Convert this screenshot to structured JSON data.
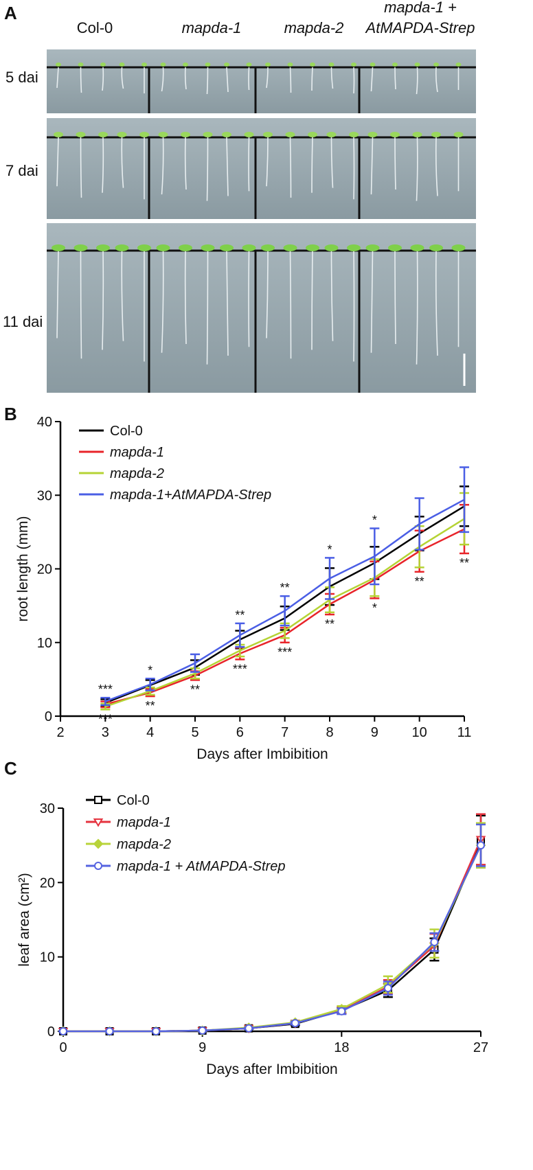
{
  "photo_panel": {
    "panel": "A",
    "column_labels": [
      [
        "Col-0"
      ],
      [
        "mapda-1"
      ],
      [
        "mapda-2"
      ],
      [
        "mapda-1 +",
        "AtMAPDA-Strep"
      ]
    ],
    "row_labels": [
      "5 dai",
      "7 dai",
      "11 dai"
    ]
  },
  "chart_data": [
    {
      "type": "line",
      "panel": "B",
      "x_label": "Days after Imbibition",
      "y_label": "root length (mm)",
      "x": [
        3,
        4,
        5,
        6,
        7,
        8,
        9,
        10,
        11
      ],
      "xlim": [
        2,
        11
      ],
      "xticks": [
        2,
        3,
        4,
        5,
        6,
        7,
        8,
        9,
        10,
        11
      ],
      "ylim": [
        0,
        40
      ],
      "yticks": [
        0,
        10,
        20,
        30,
        40
      ],
      "legend": "upper left",
      "series": [
        {
          "name": "Col-0",
          "color": "#000000",
          "font_style": "normal",
          "values": [
            1.8,
            4.2,
            6.6,
            10.4,
            13.3,
            17.6,
            20.8,
            24.8,
            28.5
          ],
          "errors": [
            0.5,
            0.7,
            1.0,
            1.2,
            1.6,
            2.5,
            2.2,
            2.3,
            2.7
          ]
        },
        {
          "name": "mapda-1",
          "color": "#e8242a",
          "font_style": "italic",
          "values": [
            1.6,
            3.2,
            5.5,
            8.5,
            11.0,
            15.2,
            18.5,
            22.4,
            25.4
          ],
          "errors": [
            0.4,
            0.5,
            0.6,
            0.8,
            1.0,
            1.4,
            2.5,
            2.8,
            3.3
          ]
        },
        {
          "name": "mapda-2",
          "color": "#b5d334",
          "font_style": "italic",
          "values": [
            1.3,
            3.4,
            5.8,
            8.9,
            11.6,
            15.8,
            18.8,
            23.0,
            26.8
          ],
          "errors": [
            0.4,
            0.5,
            0.7,
            0.8,
            1.0,
            1.7,
            2.5,
            2.8,
            3.5
          ]
        },
        {
          "name": "mapda-1+AtMAPDA-Strep",
          "color": "#4a5ee5",
          "font_style": "italic",
          "values": [
            2.0,
            4.3,
            7.2,
            11.0,
            14.3,
            18.7,
            21.7,
            26.1,
            29.4
          ],
          "errors": [
            0.5,
            0.8,
            1.2,
            1.6,
            2.0,
            2.8,
            3.8,
            3.5,
            4.4
          ]
        }
      ],
      "annotations": [
        {
          "x": 3,
          "text": "***",
          "position": "above"
        },
        {
          "x": 3,
          "text": "***",
          "position": "below"
        },
        {
          "x": 4,
          "text": "*",
          "position": "above"
        },
        {
          "x": 4,
          "text": "**",
          "position": "below"
        },
        {
          "x": 5,
          "text": "**",
          "position": "below"
        },
        {
          "x": 6,
          "text": "**",
          "position": "above"
        },
        {
          "x": 6,
          "text": "***",
          "position": "below"
        },
        {
          "x": 7,
          "text": "**",
          "position": "above"
        },
        {
          "x": 7,
          "text": "***",
          "position": "below"
        },
        {
          "x": 8,
          "text": "*",
          "position": "above"
        },
        {
          "x": 8,
          "text": "**",
          "position": "below"
        },
        {
          "x": 9,
          "text": "*",
          "position": "above"
        },
        {
          "x": 9,
          "text": "*",
          "position": "below"
        },
        {
          "x": 10,
          "text": "**",
          "position": "below"
        },
        {
          "x": 11,
          "text": "**",
          "position": "below"
        }
      ]
    },
    {
      "type": "line",
      "panel": "C",
      "x_label": "Days after Imbibition",
      "y_label": "leaf area (cm²)",
      "x": [
        0,
        3,
        6,
        9,
        12,
        15,
        18,
        21,
        24,
        27
      ],
      "xlim": [
        0,
        27
      ],
      "xticks": [
        0,
        9,
        18,
        27
      ],
      "ylim": [
        0,
        30
      ],
      "yticks": [
        0,
        10,
        20,
        30
      ],
      "legend": "upper left",
      "series": [
        {
          "name": "Col-0",
          "color": "#000000",
          "font_style": "normal",
          "marker": "square",
          "filled": false,
          "values": [
            0,
            0,
            0,
            0.1,
            0.4,
            1.0,
            2.8,
            5.5,
            11.0,
            25.5
          ],
          "errors": [
            0,
            0,
            0,
            0.05,
            0.1,
            0.2,
            0.4,
            0.9,
            1.5,
            3.5
          ]
        },
        {
          "name": "mapda-1",
          "color": "#e5333f",
          "font_style": "italic",
          "marker": "triangle-down",
          "filled": false,
          "values": [
            0,
            0,
            0,
            0.1,
            0.4,
            1.1,
            2.8,
            6.0,
            11.5,
            25.8
          ],
          "errors": [
            0,
            0,
            0,
            0.05,
            0.1,
            0.2,
            0.4,
            0.9,
            1.6,
            3.4
          ]
        },
        {
          "name": "mapda-2",
          "color": "#b8d33a",
          "font_style": "italic",
          "marker": "diamond",
          "filled": true,
          "values": [
            0,
            0,
            0,
            0.1,
            0.5,
            1.2,
            3.0,
            6.3,
            11.8,
            25.0
          ],
          "errors": [
            0,
            0,
            0,
            0.05,
            0.1,
            0.2,
            0.4,
            1.1,
            1.9,
            3.0
          ]
        },
        {
          "name": "mapda-1 + AtMAPDA-Strep",
          "color": "#5563e0",
          "font_style": "italic",
          "marker": "circle",
          "filled": false,
          "values": [
            0,
            0,
            0,
            0.1,
            0.4,
            1.1,
            2.7,
            5.8,
            12.0,
            25.0
          ],
          "errors": [
            0,
            0,
            0,
            0.05,
            0.1,
            0.2,
            0.4,
            0.9,
            1.2,
            2.8
          ]
        }
      ]
    }
  ]
}
